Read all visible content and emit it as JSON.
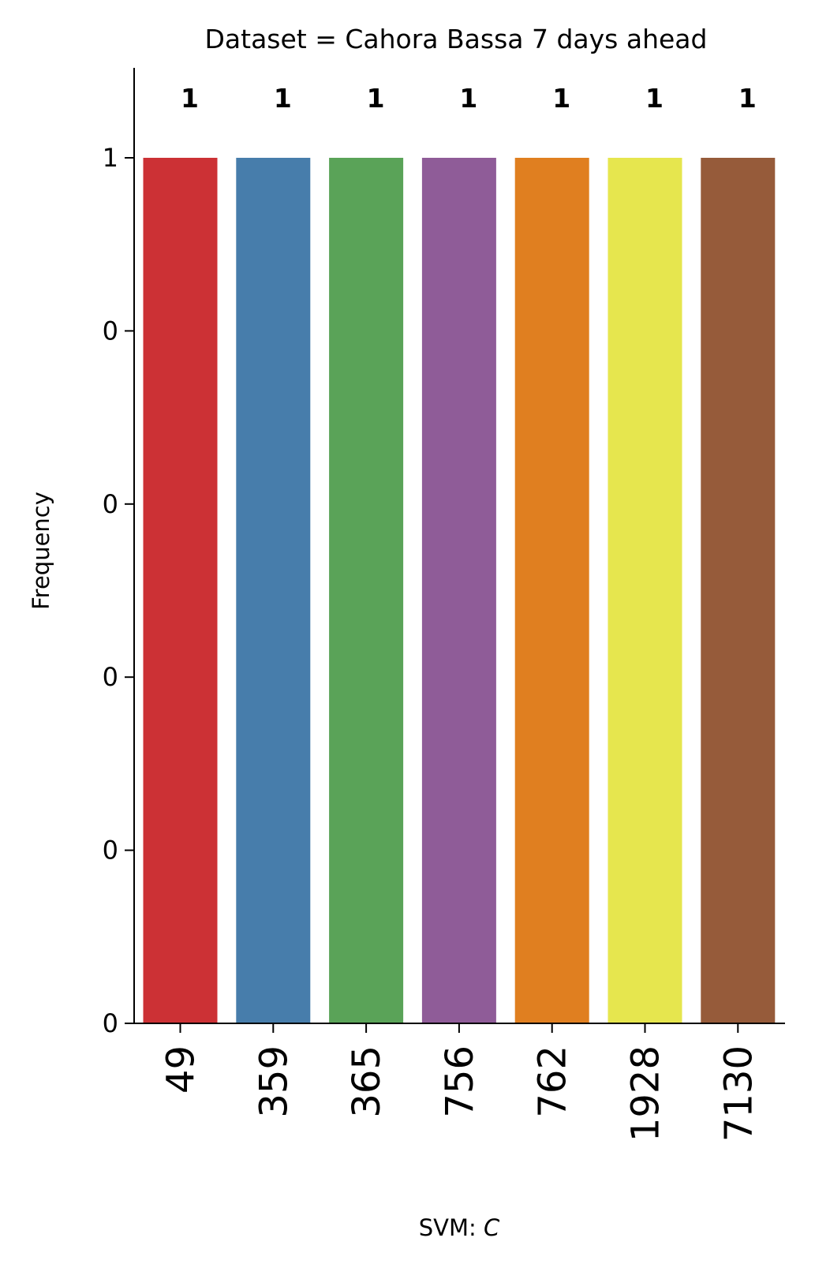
{
  "chart_data": {
    "type": "bar",
    "title": "Dataset = Cahora Bassa 7 days ahead",
    "xlabel_prefix": "SVM: ",
    "xlabel_symbol": "C",
    "ylabel": "Frequency",
    "categories": [
      "49",
      "359",
      "365",
      "756",
      "762",
      "1928",
      "7130"
    ],
    "values": [
      1,
      1,
      1,
      1,
      1,
      1,
      1
    ],
    "data_labels": [
      "1",
      "1",
      "1",
      "1",
      "1",
      "1",
      "1"
    ],
    "colors": [
      "#cc3135",
      "#477dab",
      "#5aa358",
      "#8f5c98",
      "#e07f20",
      "#e6e64e",
      "#965b3a"
    ],
    "ylim": [
      0,
      1.5
    ],
    "yticks": [
      0,
      0.2,
      0.4,
      0.6,
      0.8,
      1.0
    ],
    "ytick_labels": [
      "0",
      "0",
      "0",
      "0",
      "0",
      "1"
    ],
    "grid": false,
    "legend": "none"
  }
}
